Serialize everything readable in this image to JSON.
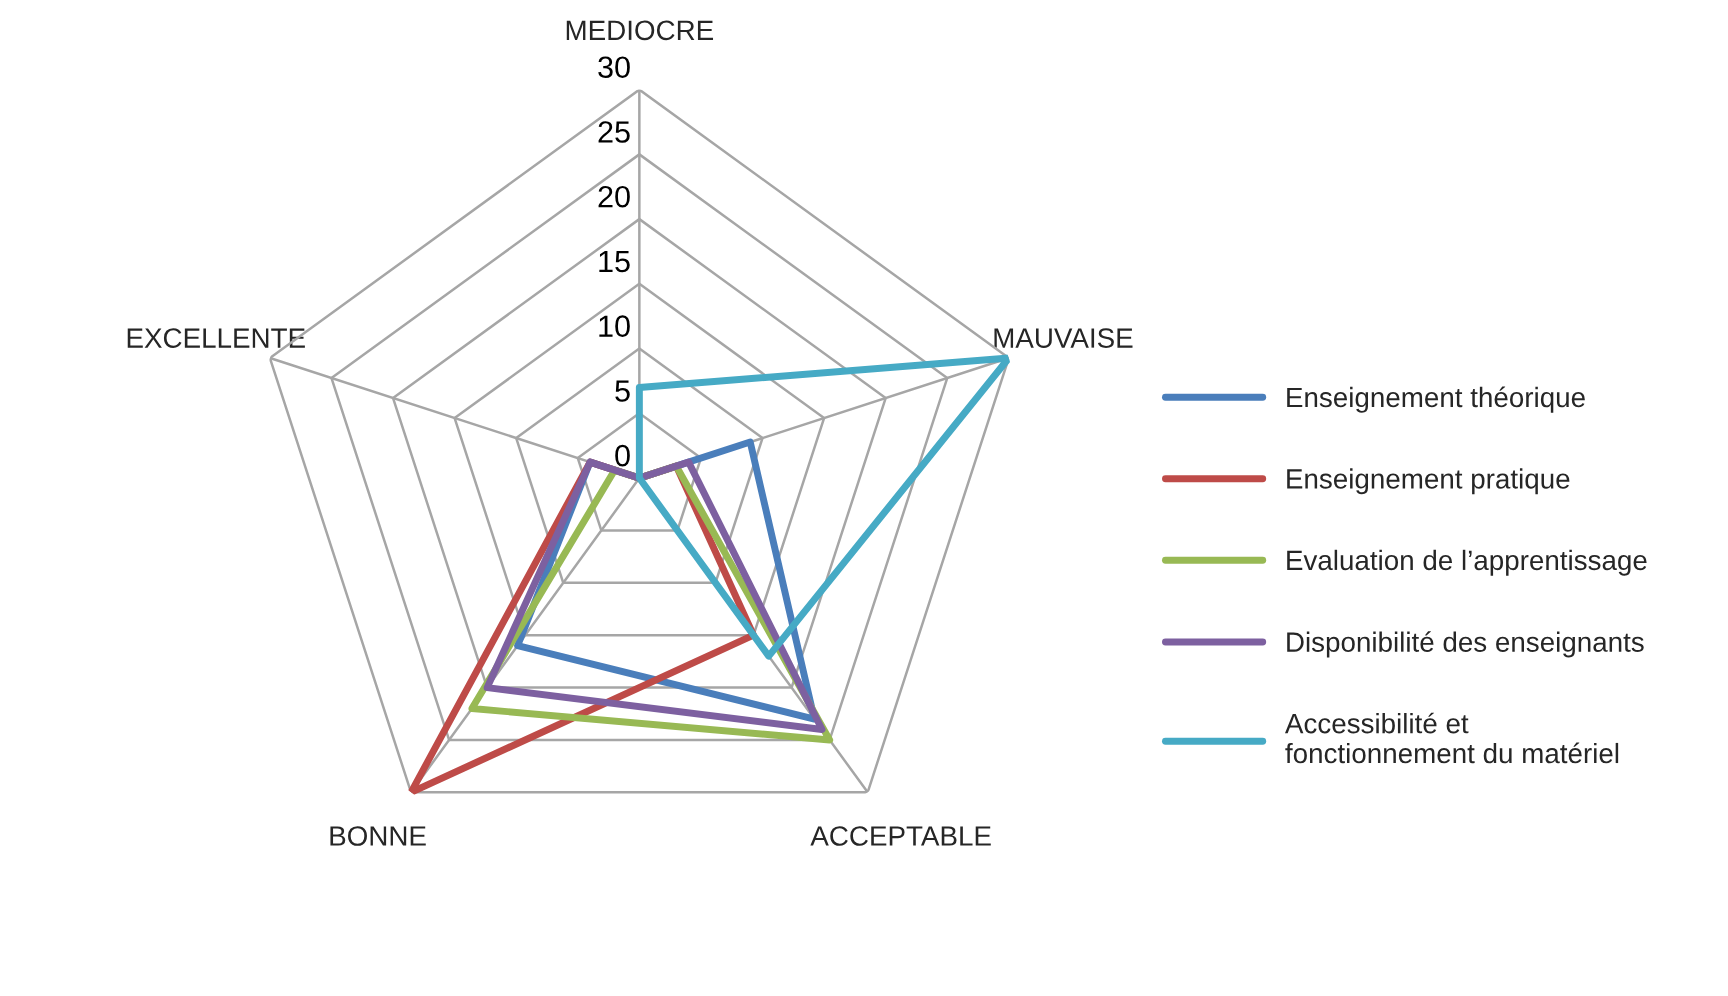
{
  "chart_data": {
    "type": "radar",
    "categories": [
      "MEDIOCRE",
      "MAUVAISE",
      "ACCEPTABLE",
      "BONNE",
      "EXCELLENTE"
    ],
    "ylim": [
      0,
      30
    ],
    "yticks": [
      0,
      5,
      10,
      15,
      20,
      25,
      30
    ],
    "grid": true,
    "legend": "right",
    "marker": "none",
    "line_style": "solid",
    "series": [
      {
        "name": "Enseignement théorique",
        "color": "#4a7ebb",
        "values": [
          0,
          9,
          23,
          16,
          4
        ]
      },
      {
        "name": "Enseignement pratique",
        "color": "#be4b48",
        "values": [
          0,
          3,
          15,
          30,
          4
        ]
      },
      {
        "name": "Evaluation de l’apprentissage",
        "color": "#98b954",
        "values": [
          0,
          3,
          25,
          22,
          2
        ]
      },
      {
        "name": "Disponibilité des enseignants",
        "color": "#7d60a0",
        "values": [
          0,
          4,
          24,
          20,
          4
        ]
      },
      {
        "name": "Accessibilité et fonctionnement du matériel",
        "color": "#46aac5",
        "values": [
          7,
          30,
          17,
          0,
          0
        ]
      }
    ]
  }
}
